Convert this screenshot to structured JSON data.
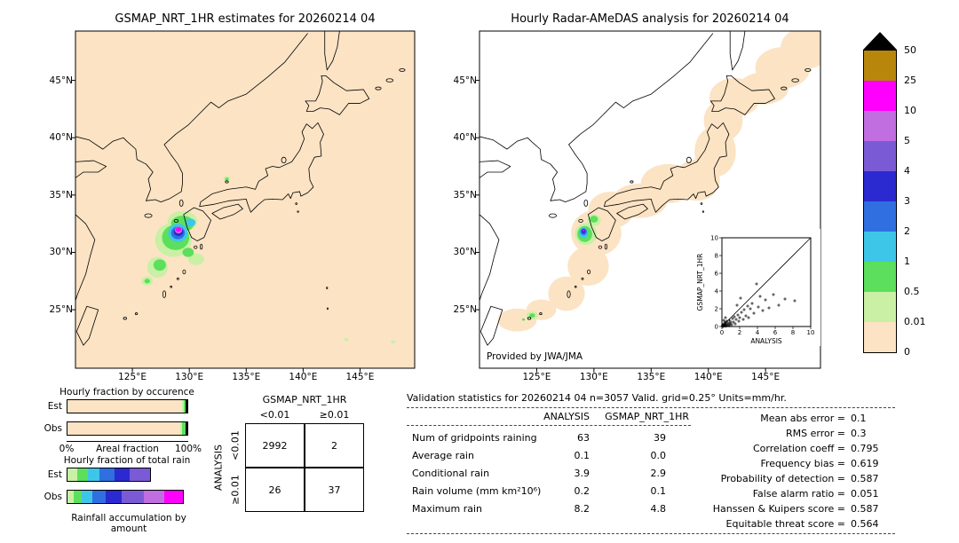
{
  "palette": {
    "peach": "#fbe3c4",
    "palegreen": "#c9f0a4",
    "green": "#5cdf5c",
    "lightblue": "#3ec6e8",
    "blue": "#2f6fe0",
    "darkblue": "#2a2ad0",
    "purple": "#7b5ad6",
    "violet": "#c06ee0",
    "magenta": "#ff00ff",
    "gold": "#b8860b",
    "black": "#000000"
  },
  "left_map": {
    "title": "GSMAP_NRT_1HR estimates for 20260214 04",
    "lat_ticks": [
      "45°N",
      "40°N",
      "35°N",
      "30°N",
      "25°N"
    ],
    "lon_ticks": [
      "125°E",
      "130°E",
      "135°E",
      "140°E",
      "145°E"
    ]
  },
  "right_map": {
    "title": "Hourly Radar-AMeDAS analysis for 20260214 04",
    "credit": "Provided by JWA/JMA",
    "lat_ticks": [
      "45°N",
      "40°N",
      "35°N",
      "30°N",
      "25°N"
    ],
    "lon_ticks": [
      "125°E",
      "130°E",
      "135°E",
      "140°E",
      "145°E"
    ]
  },
  "colorbar": {
    "tick_labels": [
      "50",
      "25",
      "10",
      "5",
      "4",
      "3",
      "2",
      "1",
      "0.5",
      "0.01",
      "0"
    ],
    "segment_colors": [
      "gold",
      "magenta",
      "violet",
      "purple",
      "darkblue",
      "blue",
      "lightblue",
      "green",
      "palegreen",
      "peach"
    ],
    "units": "mm/hr"
  },
  "chart_data": [
    {
      "type": "table",
      "col_group": "GSMAP_NRT_1HR",
      "row_group": "ANALYSIS",
      "col_labels": [
        "<0.01",
        "≥0.01"
      ],
      "row_labels": [
        "<0.01",
        "≥0.01"
      ],
      "values": [
        [
          "2992",
          "2"
        ],
        [
          "26",
          "37"
        ]
      ]
    },
    {
      "type": "table",
      "title": "Validation statistics for 20260214 04  n=3057 Valid. grid=0.25° Units=mm/hr.",
      "columns": [
        "ANALYSIS",
        "GSMAP_NRT_1HR"
      ],
      "rows": [
        {
          "label": "Num of gridpoints raining",
          "values": [
            "63",
            "39"
          ]
        },
        {
          "label": "Average rain",
          "values": [
            "0.1",
            "0.0"
          ]
        },
        {
          "label": "Conditional rain",
          "values": [
            "3.9",
            "2.9"
          ]
        },
        {
          "label": "Rain volume (mm km²10⁶)",
          "values": [
            "0.2",
            "0.1"
          ]
        },
        {
          "label": "Maximum rain",
          "values": [
            "8.2",
            "4.8"
          ]
        }
      ],
      "metrics": [
        {
          "label": "Mean abs error =",
          "value": "0.1"
        },
        {
          "label": "RMS error =",
          "value": "0.3"
        },
        {
          "label": "Correlation coeff =",
          "value": "0.795"
        },
        {
          "label": "Frequency bias =",
          "value": "0.619"
        },
        {
          "label": "Probability of detection =",
          "value": "0.587"
        },
        {
          "label": "False alarm ratio =",
          "value": "0.051"
        },
        {
          "label": "Hanssen & Kuipers score =",
          "value": "0.587"
        },
        {
          "label": "Equitable threat score =",
          "value": "0.564"
        }
      ]
    },
    {
      "type": "scatter",
      "xlabel": "ANALYSIS",
      "ylabel": "GSMAP_NRT_1HR",
      "xlim": [
        0,
        10
      ],
      "ylim": [
        0,
        10
      ],
      "x_ticks": [
        "0",
        "2",
        "4",
        "6",
        "8",
        "10"
      ],
      "y_ticks": [
        "0",
        "2",
        "4",
        "6",
        "8",
        "10"
      ],
      "points": [
        [
          0.05,
          0.02
        ],
        [
          0.08,
          0.1
        ],
        [
          0.1,
          0.05
        ],
        [
          0.12,
          0.2
        ],
        [
          0.15,
          0.02
        ],
        [
          0.2,
          0.1
        ],
        [
          0.22,
          0.3
        ],
        [
          0.3,
          0.05
        ],
        [
          0.3,
          0.2
        ],
        [
          0.35,
          0.5
        ],
        [
          0.4,
          0.1
        ],
        [
          0.45,
          0.3
        ],
        [
          0.5,
          0.05
        ],
        [
          0.55,
          0.6
        ],
        [
          0.6,
          0.2
        ],
        [
          0.7,
          0.4
        ],
        [
          0.8,
          0.1
        ],
        [
          0.85,
          0.7
        ],
        [
          0.9,
          0.3
        ],
        [
          1.0,
          0.5
        ],
        [
          1.1,
          0.2
        ],
        [
          1.2,
          0.9
        ],
        [
          1.3,
          0.5
        ],
        [
          1.4,
          1.1
        ],
        [
          1.5,
          0.3
        ],
        [
          1.6,
          0.8
        ],
        [
          1.8,
          1.3
        ],
        [
          1.9,
          0.6
        ],
        [
          2.0,
          1.0
        ],
        [
          2.2,
          1.6
        ],
        [
          2.4,
          0.8
        ],
        [
          2.5,
          1.9
        ],
        [
          2.7,
          1.2
        ],
        [
          2.9,
          2.3
        ],
        [
          3.0,
          1.0
        ],
        [
          3.2,
          2.0
        ],
        [
          3.4,
          2.6
        ],
        [
          3.6,
          1.5
        ],
        [
          3.9,
          4.8
        ],
        [
          4.1,
          2.2
        ],
        [
          4.3,
          3.4
        ],
        [
          4.6,
          1.8
        ],
        [
          4.9,
          3.0
        ],
        [
          5.3,
          2.1
        ],
        [
          5.8,
          3.6
        ],
        [
          6.4,
          2.4
        ],
        [
          7.1,
          3.1
        ],
        [
          8.2,
          2.9
        ],
        [
          2.1,
          3.2
        ],
        [
          1.7,
          2.4
        ],
        [
          0.4,
          1.0
        ],
        [
          0.2,
          0.7
        ]
      ]
    },
    {
      "type": "bar",
      "title": "Hourly fraction by occurence",
      "axis": {
        "min": "0%",
        "max": "100%",
        "caption": "Areal fraction"
      },
      "rows": [
        {
          "label": "Est",
          "segments": [
            {
              "c": "peach",
              "f": 0.955
            },
            {
              "c": "palegreen",
              "f": 0.012
            },
            {
              "c": "green",
              "f": 0.021
            },
            {
              "c": "black",
              "f": 0.012
            }
          ]
        },
        {
          "label": "Obs",
          "segments": [
            {
              "c": "peach",
              "f": 0.94
            },
            {
              "c": "palegreen",
              "f": 0.015
            },
            {
              "c": "green",
              "f": 0.03
            },
            {
              "c": "black",
              "f": 0.015
            }
          ]
        }
      ]
    },
    {
      "type": "bar",
      "title": "Hourly fraction of total rain",
      "caption": "Rainfall accumulation by amount",
      "rows": [
        {
          "label": "Est",
          "segments": [
            {
              "c": "palegreen",
              "f": 0.08
            },
            {
              "c": "green",
              "f": 0.09
            },
            {
              "c": "lightblue",
              "f": 0.1
            },
            {
              "c": "blue",
              "f": 0.12
            },
            {
              "c": "darkblue",
              "f": 0.13
            },
            {
              "c": "purple",
              "f": 0.17
            }
          ]
        },
        {
          "label": "Obs",
          "segments": [
            {
              "c": "palegreen",
              "f": 0.05
            },
            {
              "c": "green",
              "f": 0.07
            },
            {
              "c": "lightblue",
              "f": 0.09
            },
            {
              "c": "blue",
              "f": 0.11
            },
            {
              "c": "darkblue",
              "f": 0.13
            },
            {
              "c": "purple",
              "f": 0.19
            },
            {
              "c": "violet",
              "f": 0.17
            },
            {
              "c": "magenta",
              "f": 0.15
            }
          ]
        }
      ]
    }
  ]
}
